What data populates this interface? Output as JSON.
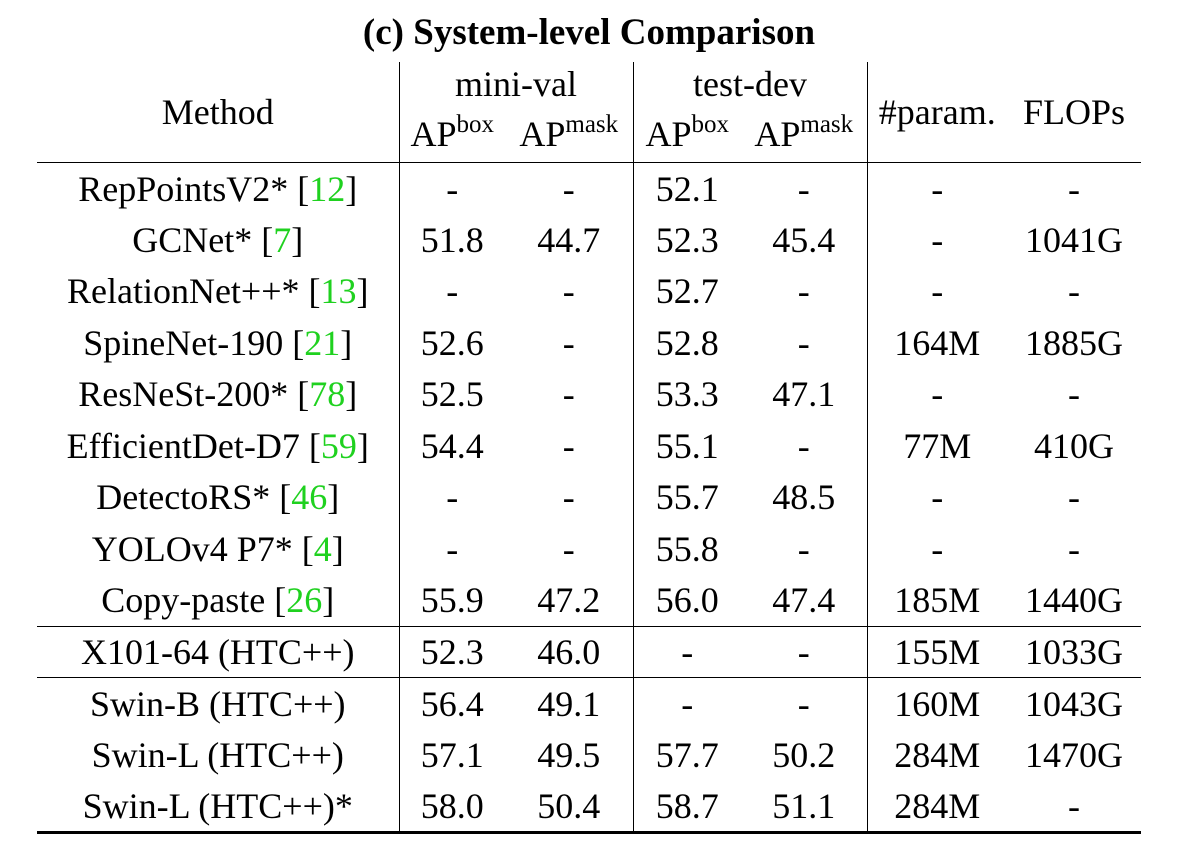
{
  "caption": "(c) System-level Comparison",
  "columns": {
    "method": "Method",
    "group_minival": "mini-val",
    "group_testdev": "test-dev",
    "ap_base": "AP",
    "ap_box_sup": "box",
    "ap_mask_sup": "mask",
    "params": "#param.",
    "flops": "FLOPs"
  },
  "rows": [
    {
      "method": "RepPointsV2* [",
      "cite": "12",
      "close": "]",
      "mv_box": "-",
      "mv_mask": "-",
      "td_box": "52.1",
      "td_mask": "-",
      "params": "-",
      "flops": "-"
    },
    {
      "method": "GCNet* [",
      "cite": "7",
      "close": "]",
      "mv_box": "51.8",
      "mv_mask": "44.7",
      "td_box": "52.3",
      "td_mask": "45.4",
      "params": "-",
      "flops": "1041G"
    },
    {
      "method": "RelationNet++* [",
      "cite": "13",
      "close": "]",
      "mv_box": "-",
      "mv_mask": "-",
      "td_box": "52.7",
      "td_mask": "-",
      "params": "-",
      "flops": "-"
    },
    {
      "method": "SpineNet-190 [",
      "cite": "21",
      "close": "]",
      "mv_box": "52.6",
      "mv_mask": "-",
      "td_box": "52.8",
      "td_mask": "-",
      "params": "164M",
      "flops": "1885G"
    },
    {
      "method": "ResNeSt-200* [",
      "cite": "78",
      "close": "]",
      "mv_box": "52.5",
      "mv_mask": "-",
      "td_box": "53.3",
      "td_mask": "47.1",
      "params": "-",
      "flops": "-"
    },
    {
      "method": "EfficientDet-D7 [",
      "cite": "59",
      "close": "]",
      "mv_box": "54.4",
      "mv_mask": "-",
      "td_box": "55.1",
      "td_mask": "-",
      "params": "77M",
      "flops": "410G"
    },
    {
      "method": "DetectoRS* [",
      "cite": "46",
      "close": "]",
      "mv_box": "-",
      "mv_mask": "-",
      "td_box": "55.7",
      "td_mask": "48.5",
      "params": "-",
      "flops": "-"
    },
    {
      "method": "YOLOv4 P7* [",
      "cite": "4",
      "close": "]",
      "mv_box": "-",
      "mv_mask": "-",
      "td_box": "55.8",
      "td_mask": "-",
      "params": "-",
      "flops": "-"
    },
    {
      "method": "Copy-paste [",
      "cite": "26",
      "close": "]",
      "mv_box": "55.9",
      "mv_mask": "47.2",
      "td_box": "56.0",
      "td_mask": "47.4",
      "params": "185M",
      "flops": "1440G"
    },
    {
      "method": "X101-64 (HTC++)",
      "cite": "",
      "close": "",
      "mv_box": "52.3",
      "mv_mask": "46.0",
      "td_box": "-",
      "td_mask": "-",
      "params": "155M",
      "flops": "1033G"
    },
    {
      "method": "Swin-B (HTC++)",
      "cite": "",
      "close": "",
      "mv_box": "56.4",
      "mv_mask": "49.1",
      "td_box": "-",
      "td_mask": "-",
      "params": "160M",
      "flops": "1043G"
    },
    {
      "method": "Swin-L (HTC++)",
      "cite": "",
      "close": "",
      "mv_box": "57.1",
      "mv_mask": "49.5",
      "td_box": "57.7",
      "td_mask": "50.2",
      "params": "284M",
      "flops": "1470G"
    },
    {
      "method": "Swin-L (HTC++)*",
      "cite": "",
      "close": "",
      "mv_box": "58.0",
      "mv_mask": "50.4",
      "td_box": "58.7",
      "td_mask": "51.1",
      "params": "284M",
      "flops": "-"
    }
  ]
}
